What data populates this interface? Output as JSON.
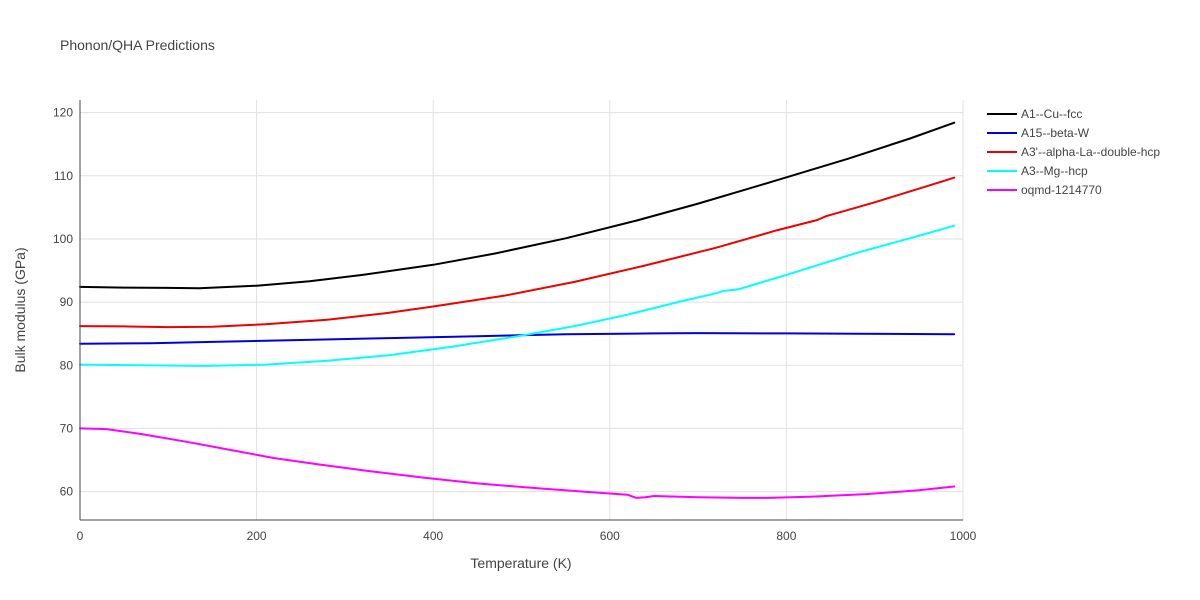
{
  "chart_data": {
    "type": "line",
    "title": "Phonon/QHA Predictions",
    "xlabel": "Temperature (K)",
    "ylabel": "Bulk modulus (GPa)",
    "xlim": [
      0,
      1000
    ],
    "ylim": [
      55.5,
      122
    ],
    "x_ticks": [
      0,
      200,
      400,
      600,
      800,
      1000
    ],
    "y_ticks": [
      60,
      70,
      80,
      90,
      100,
      110,
      120
    ],
    "grid": true,
    "legend_position": "top-right",
    "series": [
      {
        "name": "A1--Cu--fcc",
        "color": "#000000",
        "x": [
          0,
          50,
          100,
          135,
          200,
          260,
          320,
          400,
          470,
          550,
          630,
          700,
          780,
          870,
          940,
          990
        ],
        "y": [
          92.4,
          92.3,
          92.25,
          92.2,
          92.6,
          93.3,
          94.3,
          95.9,
          97.7,
          100.1,
          102.9,
          105.6,
          108.9,
          112.7,
          115.9,
          118.4
        ]
      },
      {
        "name": "A15--beta-W",
        "color": "#0000dd",
        "x": [
          0,
          80,
          150,
          250,
          350,
          450,
          550,
          650,
          700,
          800,
          880,
          940,
          990
        ],
        "y": [
          83.4,
          83.5,
          83.7,
          84.0,
          84.3,
          84.6,
          84.9,
          85.05,
          85.1,
          85.05,
          85.0,
          84.95,
          84.9
        ]
      },
      {
        "name": "A3'--alpha-La--double-hcp",
        "color": "#ee0000",
        "x": [
          0,
          50,
          100,
          150,
          210,
          280,
          350,
          400,
          480,
          560,
          640,
          720,
          790,
          835,
          845,
          900,
          960,
          990
        ],
        "y": [
          86.2,
          86.15,
          86.05,
          86.1,
          86.5,
          87.2,
          88.3,
          89.3,
          91.0,
          93.2,
          95.8,
          98.6,
          101.4,
          103.0,
          103.6,
          105.8,
          108.4,
          109.7
        ]
      },
      {
        "name": "A3--Mg--hcp",
        "color": "#00ffff",
        "x": [
          0,
          70,
          140,
          210,
          280,
          350,
          420,
          500,
          560,
          620,
          680,
          720,
          730,
          745,
          800,
          880,
          950,
          990
        ],
        "y": [
          80.1,
          80.0,
          79.9,
          80.1,
          80.7,
          81.6,
          82.9,
          84.7,
          86.2,
          88.0,
          90.1,
          91.4,
          91.8,
          92.0,
          94.3,
          97.8,
          100.5,
          102.1
        ]
      },
      {
        "name": "oqmd-1214770",
        "color": "#ff00ff",
        "x": [
          0,
          30,
          70,
          120,
          170,
          220,
          270,
          330,
          390,
          450,
          520,
          570,
          620,
          630,
          640,
          650,
          700,
          750,
          780,
          830,
          890,
          950,
          990
        ],
        "y": [
          70.0,
          69.9,
          69.1,
          67.9,
          66.6,
          65.3,
          64.3,
          63.2,
          62.2,
          61.3,
          60.5,
          60.0,
          59.5,
          59.0,
          59.1,
          59.3,
          59.1,
          59.0,
          59.0,
          59.2,
          59.6,
          60.2,
          60.8
        ]
      }
    ]
  }
}
